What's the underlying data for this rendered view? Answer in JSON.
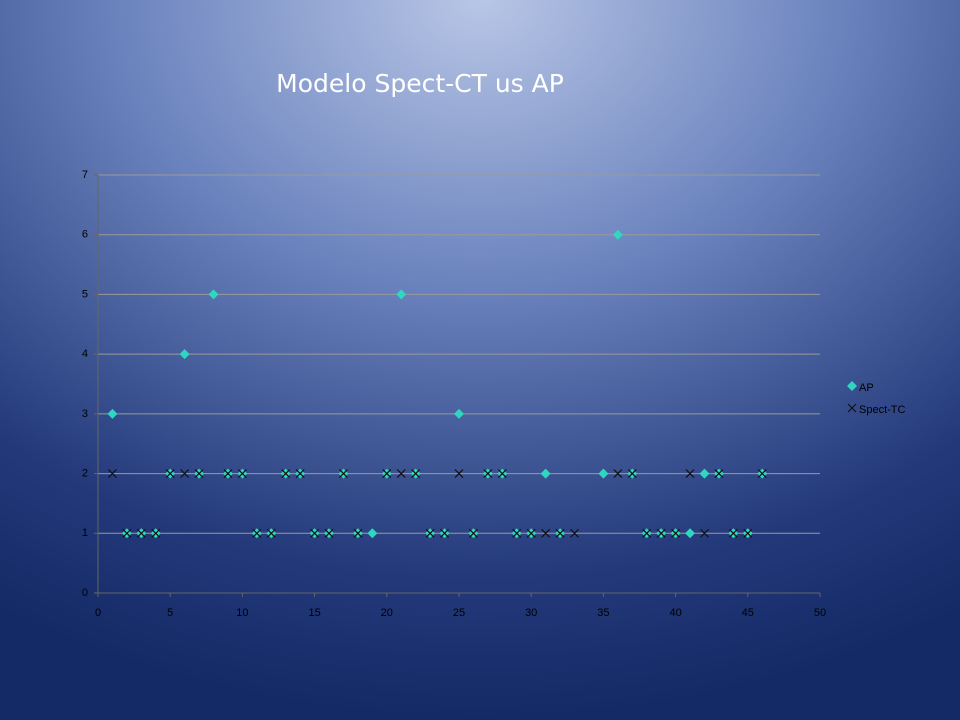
{
  "chart_data": {
    "type": "scatter",
    "title": "Modelo Spect-CT us AP",
    "xlim": [
      0,
      50
    ],
    "xticks": [
      0,
      5,
      10,
      15,
      20,
      25,
      30,
      35,
      40,
      45,
      50
    ],
    "ylim": [
      0,
      7
    ],
    "yticks": [
      0,
      1,
      2,
      3,
      4,
      5,
      6,
      7
    ],
    "grid": true,
    "legend": "right",
    "series": [
      {
        "name": "AP",
        "color": "#2fd6c0",
        "marker": "diamond",
        "x": [
          1,
          2,
          3,
          4,
          5,
          6,
          7,
          8,
          9,
          10,
          11,
          12,
          13,
          14,
          15,
          16,
          17,
          18,
          19,
          20,
          21,
          22,
          23,
          24,
          25,
          26,
          27,
          28,
          29,
          30,
          31,
          32,
          35,
          36,
          37,
          38,
          39,
          40,
          41,
          42,
          43,
          44,
          45,
          46
        ],
        "values": [
          3,
          1,
          1,
          1,
          2,
          4,
          2,
          5,
          2,
          2,
          1,
          1,
          2,
          2,
          1,
          1,
          2,
          1,
          1,
          2,
          5,
          2,
          1,
          1,
          3,
          1,
          2,
          2,
          1,
          1,
          2,
          1,
          2,
          6,
          2,
          1,
          1,
          1,
          1,
          2,
          2,
          1,
          1,
          2
        ]
      },
      {
        "name": "Spect-TC",
        "color": "#111111",
        "marker": "cross",
        "x": [
          1,
          2,
          3,
          4,
          5,
          6,
          7,
          9,
          10,
          11,
          12,
          13,
          14,
          15,
          16,
          17,
          18,
          20,
          21,
          22,
          23,
          24,
          25,
          26,
          27,
          28,
          29,
          30,
          31,
          32,
          33,
          36,
          37,
          38,
          39,
          40,
          41,
          42,
          43,
          44,
          45,
          46
        ],
        "values": [
          2,
          1,
          1,
          1,
          2,
          2,
          2,
          2,
          2,
          1,
          1,
          2,
          2,
          1,
          1,
          2,
          1,
          2,
          2,
          2,
          1,
          1,
          2,
          1,
          2,
          2,
          1,
          1,
          1,
          1,
          1,
          2,
          2,
          1,
          1,
          1,
          2,
          1,
          2,
          1,
          1,
          2
        ]
      }
    ]
  }
}
